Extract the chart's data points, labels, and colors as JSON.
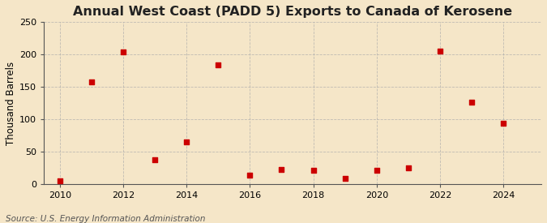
{
  "title": "Annual West Coast (PADD 5) Exports to Canada of Kerosene",
  "ylabel": "Thousand Barrels",
  "source": "Source: U.S. Energy Information Administration",
  "years": [
    2010,
    2011,
    2012,
    2013,
    2014,
    2015,
    2016,
    2017,
    2018,
    2019,
    2020,
    2021,
    2022,
    2023,
    2024
  ],
  "values": [
    5,
    158,
    204,
    37,
    65,
    184,
    14,
    23,
    21,
    9,
    21,
    25,
    205,
    127,
    94
  ],
  "marker_color": "#cc0000",
  "background_color": "#f5e6c8",
  "grid_color": "#aaaaaa",
  "xlim": [
    2009.5,
    2025.2
  ],
  "ylim": [
    0,
    250
  ],
  "yticks": [
    0,
    50,
    100,
    150,
    200,
    250
  ],
  "xticks": [
    2010,
    2012,
    2014,
    2016,
    2018,
    2020,
    2022,
    2024
  ],
  "title_fontsize": 11.5,
  "label_fontsize": 8.5,
  "tick_fontsize": 8,
  "source_fontsize": 7.5
}
